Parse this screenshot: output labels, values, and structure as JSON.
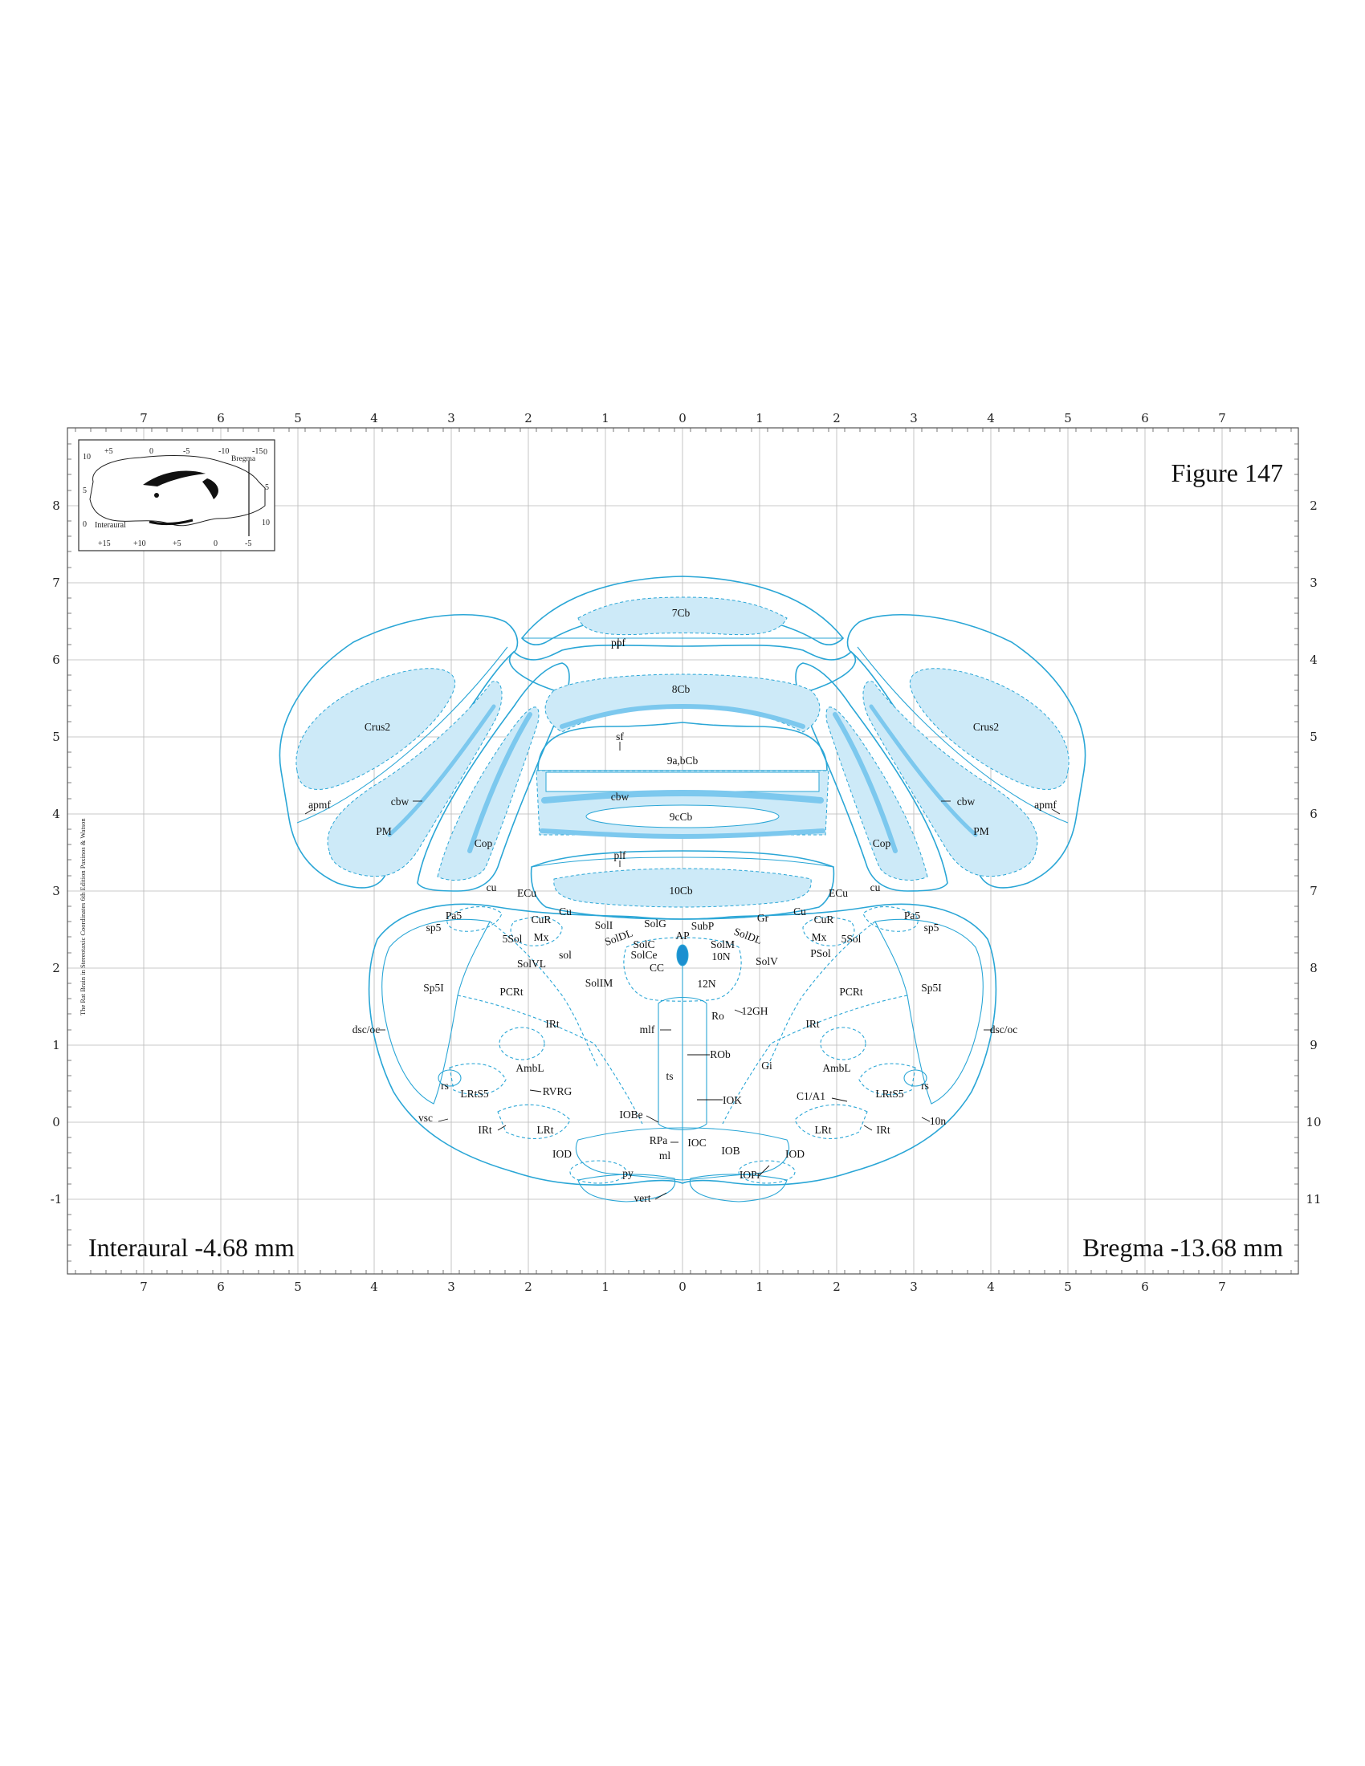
{
  "figure": {
    "title": "Figure 147",
    "interaural": "Interaural -4.68 mm",
    "bregma": "Bregma -13.68 mm",
    "side_caption": "The Rat Brain in Stereotaxic Coordinates 6th Edition Paxinos & Watson"
  },
  "axes": {
    "top": [
      "7",
      "6",
      "5",
      "4",
      "3",
      "2",
      "1",
      "0",
      "1",
      "2",
      "3",
      "4",
      "5",
      "6",
      "7"
    ],
    "bottom": [
      "7",
      "6",
      "5",
      "4",
      "3",
      "2",
      "1",
      "0",
      "1",
      "2",
      "3",
      "4",
      "5",
      "6",
      "7"
    ],
    "left": [
      "8",
      "7",
      "6",
      "5",
      "4",
      "3",
      "2",
      "1",
      "0",
      "-1"
    ],
    "right": [
      "2",
      "3",
      "4",
      "5",
      "6",
      "7",
      "8",
      "9",
      "10",
      "11"
    ]
  },
  "inset": {
    "top_ticks": [
      "+5",
      "0",
      "-5",
      "-10",
      "-15"
    ],
    "bottom_ticks": [
      "+15",
      "+10",
      "+5",
      "0",
      "-5"
    ],
    "left_ticks": [
      "10",
      "5",
      "0"
    ],
    "right_ticks": [
      "0",
      "5",
      "10"
    ],
    "interaural_label": "Interaural",
    "bregma_label": "Bregma"
  },
  "labels": {
    "l7cb": "7Cb",
    "ppf": "ppf",
    "l8cb": "8Cb",
    "sf": "sf",
    "l9abcb": "9a,bCb",
    "cbw_c": "cbw",
    "l9ccb": "9cCb",
    "plf": "plf",
    "l10cb": "10Cb",
    "crus2": "Crus2",
    "apmf": "apmf",
    "cbw": "cbw",
    "pm": "PM",
    "cop": "Cop",
    "cu": "cu",
    "ecu": "ECu",
    "cu_nuc": "Cu",
    "cur": "CuR",
    "pa5": "Pa5",
    "sp5": "sp5",
    "soll": "SolI",
    "solg": "SolG",
    "soldl": "SolDL",
    "ap": "AP",
    "subp": "SubP",
    "gr": "Gr",
    "mx": "Mx",
    "l5sol": "5Sol",
    "sol": "sol",
    "solc": "SolC",
    "solce": "SolCe",
    "solm": "SolM",
    "l10n": "10N",
    "cc": "CC",
    "solvl": "SolVL",
    "solv": "SolV",
    "psol": "PSol",
    "sp5i": "Sp5I",
    "pcrt": "PCRt",
    "solim": "SolIM",
    "l12n": "12N",
    "ro": "Ro",
    "l12gh": "12GH",
    "irt": "IRt",
    "dscoc": "dsc/oc",
    "mlf": "mlf",
    "rob": "ROb",
    "gi": "Gi",
    "ambl": "AmbL",
    "ts": "ts",
    "rs": "rs",
    "lrts5": "LRtS5",
    "rvrg": "RVRG",
    "iok": "IOK",
    "c1a1": "C1/A1",
    "vsc": "vsc",
    "iobe": "IOBe",
    "lrt": "LRt",
    "l10n_nerve": "10n",
    "rpa": "RPa",
    "ioc": "IOC",
    "iod": "IOD",
    "iob": "IOB",
    "ml": "ml",
    "py": "py",
    "iopr": "IOPr",
    "vert": "vert"
  },
  "colors": {
    "outline": "#2aa6d6",
    "light_fill": "#cdeaf8",
    "medium_fill": "#9fd6f1",
    "dark_fill": "#1b8fd0"
  }
}
